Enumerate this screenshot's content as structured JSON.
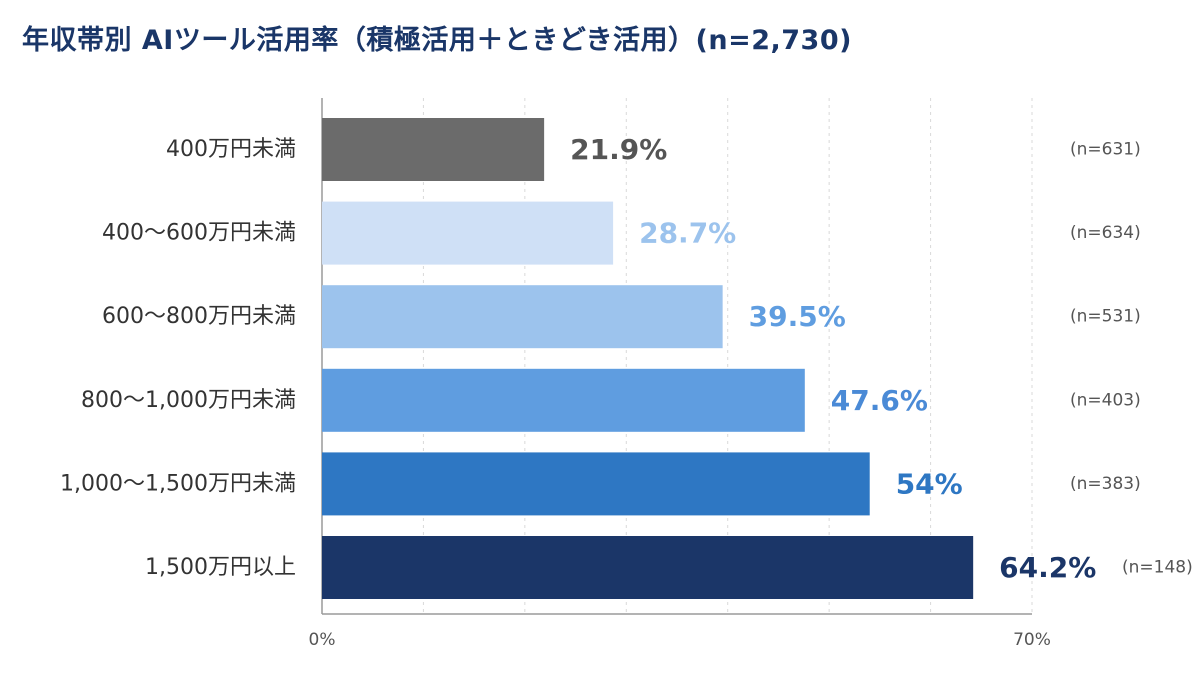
{
  "chart_data": {
    "type": "bar",
    "orientation": "horizontal",
    "title": "年収帯別 AIツール活用率（積極活用＋ときどき活用）(n=2,730)",
    "categories": [
      "400万円未満",
      "400～600万円未満",
      "600～800万円未満",
      "800～1,000万円未満",
      "1,000～1,500万円未満",
      "1,500万円以上"
    ],
    "values": [
      21.9,
      28.7,
      39.5,
      47.6,
      54,
      64.2
    ],
    "value_labels": [
      "21.9%",
      "28.7%",
      "39.5%",
      "47.6%",
      "54%",
      "64.2%"
    ],
    "n_labels": [
      "(n=631)",
      "(n=634)",
      "(n=531)",
      "(n=403)",
      "(n=383)",
      "(n=148)"
    ],
    "bar_colors": [
      "#6b6b6b",
      "#cfe0f6",
      "#9cc3ed",
      "#5f9de0",
      "#2e77c3",
      "#1b3668"
    ],
    "value_label_colors": [
      "#555555",
      "#9cc3ed",
      "#5f9de0",
      "#4a8ad6",
      "#2e77c3",
      "#1b3668"
    ],
    "xlim": [
      0,
      70
    ],
    "x_tick_labels": [
      "0%",
      "70%"
    ],
    "grid": true
  }
}
